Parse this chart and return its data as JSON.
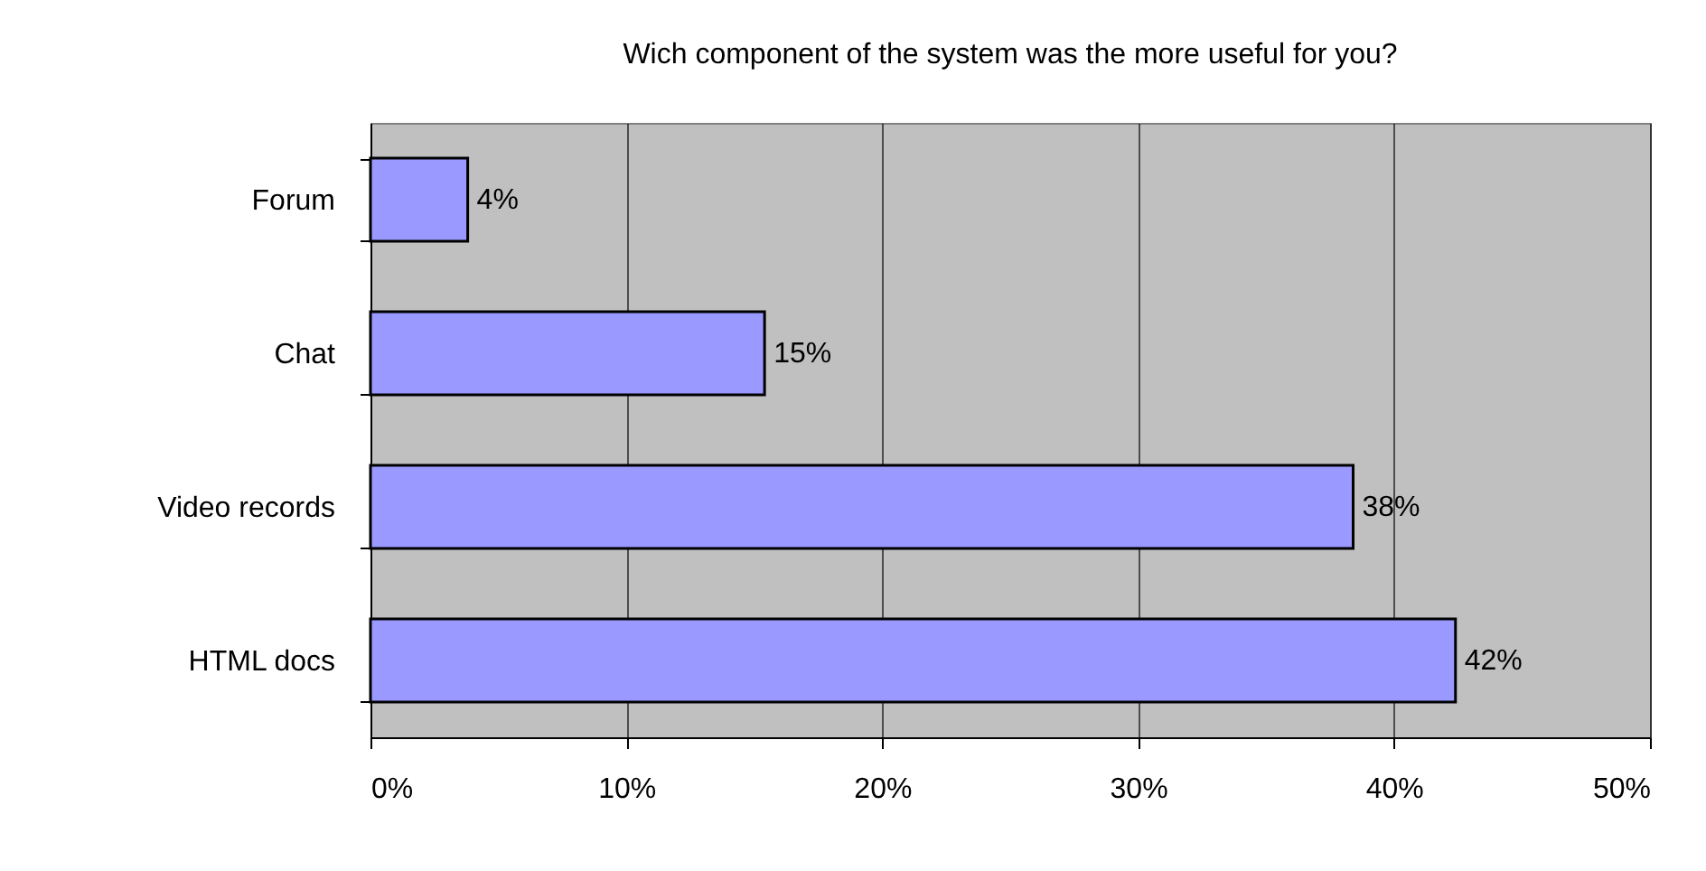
{
  "chart_data": {
    "type": "bar",
    "orientation": "horizontal",
    "title": "Wich component of the system was the more useful for you?",
    "categories": [
      "Forum",
      "Chat",
      "Video records",
      "HTML docs"
    ],
    "values": [
      3.8,
      15.4,
      38.4,
      42.4
    ],
    "value_labels": [
      "4%",
      "15%",
      "38%",
      "42%"
    ],
    "color": "#9999ff",
    "xlim": [
      0,
      50
    ],
    "xticks": [
      {
        "value": 0,
        "label": "0%"
      },
      {
        "value": 10,
        "label": "10%"
      },
      {
        "value": 20,
        "label": "20%"
      },
      {
        "value": 30,
        "label": "30%"
      },
      {
        "value": 40,
        "label": "40%"
      },
      {
        "value": 50,
        "label": "50%"
      }
    ],
    "grid": "x"
  }
}
